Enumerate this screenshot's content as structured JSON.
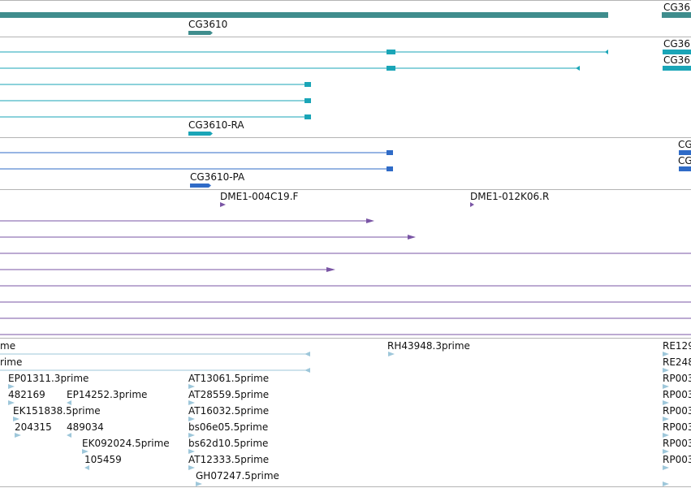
{
  "colors": {
    "divider": "#b4b4b4",
    "gene": "#3f8d8d",
    "transcript": "#1aa5b7",
    "protein": "#2f6bc7",
    "clone": "#7a55a5",
    "est": "#9ec7da"
  },
  "tracks": {
    "gene": {
      "labels": {
        "a": "CG3610",
        "b": "CG36"
      }
    },
    "transcript": {
      "labels": {
        "a": "CG3610-RA",
        "b": "CG36",
        "c": "CG36"
      }
    },
    "protein": {
      "labels": {
        "a": "CG3610-PA",
        "b": "CG",
        "c": "CG"
      }
    },
    "clone": {
      "labels": {
        "a": "DME1-004C19.F",
        "b": "DME1-012K06.R"
      }
    },
    "est": {
      "labels": {
        "e1": "me",
        "e2": "rime",
        "e3": "EP01311.3prime",
        "e4": "482169",
        "e5": "EP14252.3prime",
        "e6": "EK151838.5prime",
        "e7": "204315",
        "e8": "489034",
        "e9": "EK092024.5prime",
        "e10": "105459",
        "e11": "AT13061.5prime",
        "e12": "AT28559.5prime",
        "e13": "AT16032.5prime",
        "e14": "bs06e05.5prime",
        "e15": "bs62d10.5prime",
        "e16": "AT12333.5prime",
        "e17": "GH07247.5prime",
        "e18": "RH43948.3prime",
        "e19": "RE129",
        "e20": "RE248",
        "e21": "RP003",
        "e22": "RP003",
        "e23": "RP003",
        "e24": "RP003",
        "e25": "RP003",
        "e26": "RP003"
      }
    }
  }
}
